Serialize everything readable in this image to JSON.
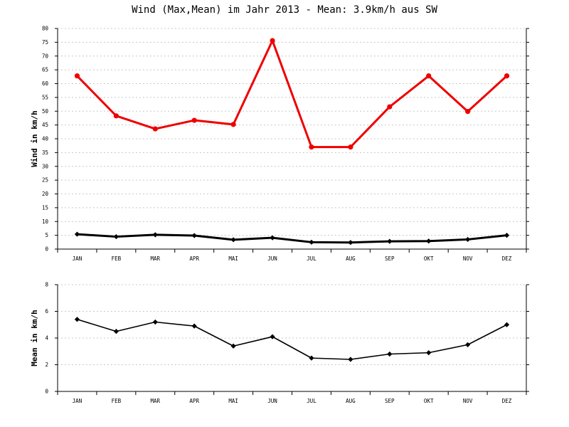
{
  "chart_data": [
    {
      "type": "line",
      "title": "Wind (Max,Mean) im Jahr 2013 - Mean: 3.9km/h aus SW",
      "ylabel": "Wind in km/h",
      "xlabel": "",
      "categories": [
        "JAN",
        "FEB",
        "MAR",
        "APR",
        "MAI",
        "JUN",
        "JUL",
        "AUG",
        "SEP",
        "OKT",
        "NOV",
        "DEZ"
      ],
      "ylim": [
        0,
        80
      ],
      "yticks": [
        0,
        5,
        10,
        15,
        20,
        25,
        30,
        35,
        40,
        45,
        50,
        55,
        60,
        65,
        70,
        75,
        80
      ],
      "grid": true,
      "series": [
        {
          "values": [
            62.8,
            48.3,
            43.6,
            46.7,
            45.2,
            75.6,
            37.0,
            37.0,
            51.6,
            62.8,
            49.9,
            62.8
          ],
          "color": "#ee0000",
          "marker": "circle"
        },
        {
          "values": [
            5.4,
            4.5,
            5.2,
            4.9,
            3.4,
            4.1,
            2.5,
            2.4,
            2.8,
            2.9,
            3.5,
            5.0
          ],
          "color": "#000000",
          "marker": "diamond"
        }
      ]
    },
    {
      "type": "line",
      "title": "",
      "ylabel": "Mean in km/h",
      "xlabel": "",
      "categories": [
        "JAN",
        "FEB",
        "MAR",
        "APR",
        "MAI",
        "JUN",
        "JUL",
        "AUG",
        "SEP",
        "OKT",
        "NOV",
        "DEZ"
      ],
      "ylim": [
        0,
        8
      ],
      "yticks": [
        0,
        2,
        4,
        6,
        8
      ],
      "grid": true,
      "series": [
        {
          "values": [
            5.4,
            4.5,
            5.2,
            4.9,
            3.4,
            4.1,
            2.5,
            2.4,
            2.8,
            2.9,
            3.5,
            5.0
          ],
          "color": "#000000",
          "marker": "diamond"
        }
      ]
    }
  ]
}
